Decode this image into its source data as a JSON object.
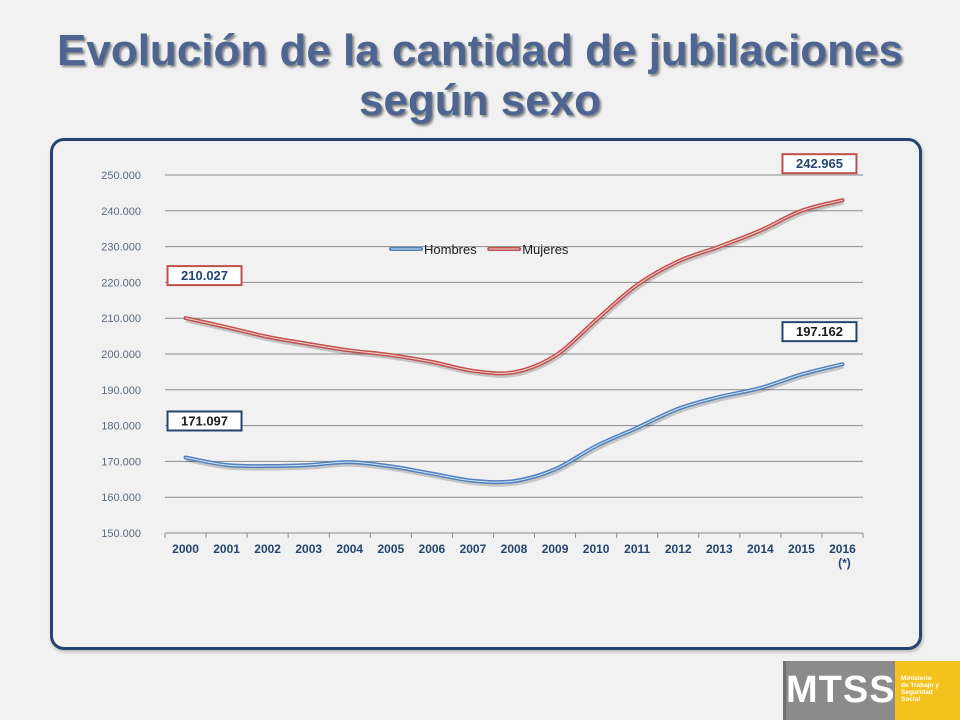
{
  "title": "Evolución de la cantidad de jubilaciones según sexo",
  "logo": {
    "acronym": "MTSS",
    "ministry_lines": [
      "Ministerio",
      "de Trabajo y",
      "Seguridad",
      "Social"
    ]
  },
  "chart_data": {
    "type": "line",
    "title": "",
    "xlabel": "",
    "ylabel": "",
    "categories": [
      "2000",
      "2001",
      "2002",
      "2003",
      "2004",
      "2005",
      "2006",
      "2007",
      "2008",
      "2009",
      "2010",
      "2011",
      "2012",
      "2013",
      "2014",
      "2015",
      "2016"
    ],
    "category_notes": {
      "2016": "(*)"
    },
    "ylim": [
      150000,
      250000
    ],
    "yticks": [
      150000,
      160000,
      170000,
      180000,
      190000,
      200000,
      210000,
      220000,
      230000,
      240000,
      250000
    ],
    "ytick_labels": [
      "150.000",
      "160.000",
      "170.000",
      "180.000",
      "190.000",
      "200.000",
      "210.000",
      "220.000",
      "230.000",
      "240.000",
      "250.000"
    ],
    "grid": true,
    "legend_position": "top-center",
    "series": [
      {
        "name": "Hombres",
        "color": "#4f81bd",
        "values": [
          171097,
          169000,
          168700,
          169000,
          169800,
          168600,
          166600,
          164600,
          164500,
          167800,
          174300,
          179400,
          184700,
          188000,
          190500,
          194300,
          197162
        ]
      },
      {
        "name": "Mujeres",
        "color": "#c0504d",
        "values": [
          210027,
          207500,
          204800,
          202800,
          201000,
          199700,
          197800,
          195300,
          194900,
          199500,
          209500,
          219300,
          225900,
          230000,
          234500,
          240000,
          242965
        ]
      }
    ],
    "annotations": [
      {
        "text": "171.097",
        "series": "Hombres",
        "category": "2000",
        "anchor": "above",
        "border": "#23456f",
        "text_color": "#1a1a1a"
      },
      {
        "text": "210.027",
        "series": "Mujeres",
        "category": "2000",
        "anchor": "above",
        "border": "#c0504d",
        "text_color": "#23456f"
      },
      {
        "text": "197.162",
        "series": "Hombres",
        "category": "2016",
        "anchor": "above",
        "border": "#23456f",
        "text_color": "#1a1a1a"
      },
      {
        "text": "242.965",
        "series": "Mujeres",
        "category": "2016",
        "anchor": "above",
        "border": "#c0504d",
        "text_color": "#23456f"
      }
    ]
  }
}
